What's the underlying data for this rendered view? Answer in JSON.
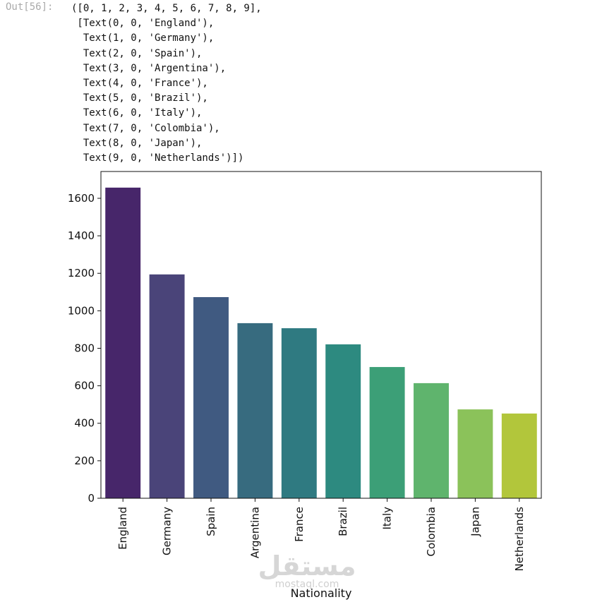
{
  "output": {
    "prompt": "Out[56]:",
    "lines": [
      "([0, 1, 2, 3, 4, 5, 6, 7, 8, 9],",
      " [Text(0, 0, 'England'),",
      "  Text(1, 0, 'Germany'),",
      "  Text(2, 0, 'Spain'),",
      "  Text(3, 0, 'Argentina'),",
      "  Text(4, 0, 'France'),",
      "  Text(5, 0, 'Brazil'),",
      "  Text(6, 0, 'Italy'),",
      "  Text(7, 0, 'Colombia'),",
      "  Text(8, 0, 'Japan'),",
      "  Text(9, 0, 'Netherlands')])"
    ]
  },
  "watermark": {
    "brand": "مستقل",
    "site": "mostaql.com"
  },
  "chart_data": {
    "type": "bar",
    "xlabel": "Nationality",
    "categories": [
      "England",
      "Germany",
      "Spain",
      "Argentina",
      "France",
      "Brazil",
      "Italy",
      "Colombia",
      "Japan",
      "Netherlands"
    ],
    "values": [
      1657,
      1194,
      1073,
      934,
      907,
      821,
      700,
      614,
      474,
      452
    ],
    "colors": [
      "#47266a",
      "#4a4479",
      "#405a81",
      "#376b7f",
      "#2f7a81",
      "#2d8a80",
      "#3c9f77",
      "#5fb46d",
      "#8bc25a",
      "#b2c63b"
    ],
    "ylim": [
      0,
      1743
    ],
    "yticks": [
      0,
      200,
      400,
      600,
      800,
      1000,
      1200,
      1400,
      1600
    ],
    "grid": false
  }
}
